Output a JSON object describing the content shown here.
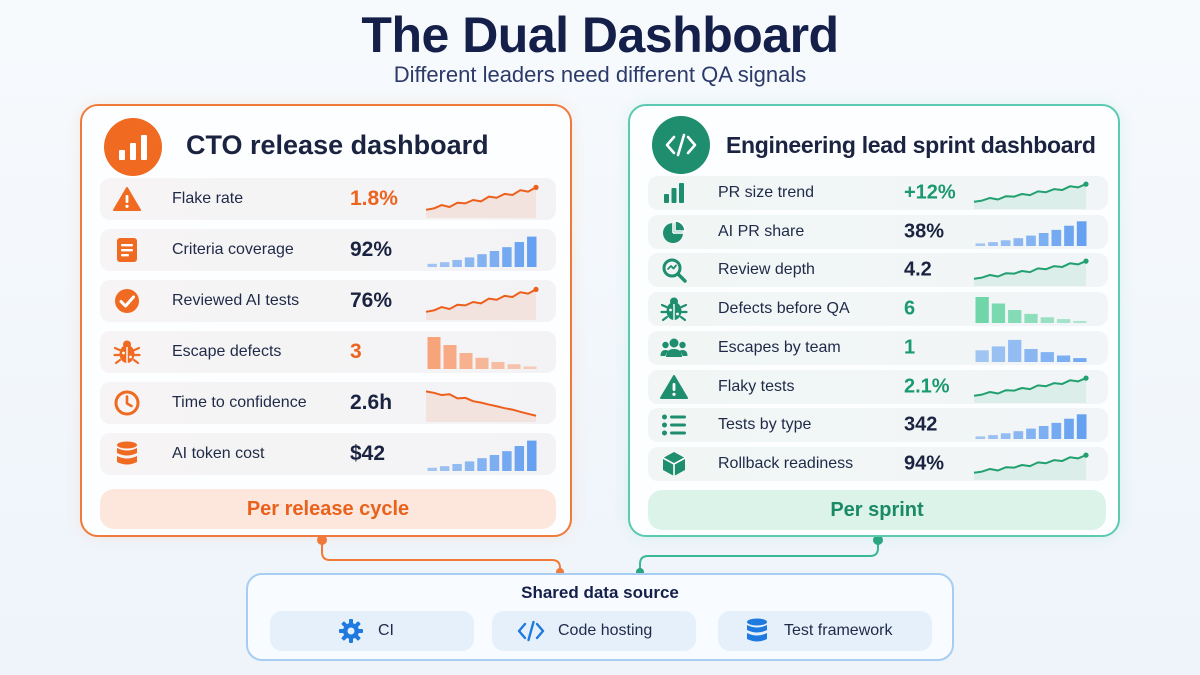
{
  "title": "The Dual Dashboard",
  "subtitle": "Different leaders need different QA signals",
  "colors": {
    "cto_accent": "#f06a22",
    "eng_accent": "#1e8e6e",
    "shared_border": "#a8cdf2",
    "value_blue": "#1a2340"
  },
  "cto": {
    "title": "CTO release dashboard",
    "icon": "bar-chart-icon",
    "footer": "Per release cycle",
    "rows": [
      {
        "label": "Flake rate",
        "value": "1.8%",
        "icon": "warning-icon",
        "value_color": "orange",
        "spark": "line-up"
      },
      {
        "label": "Criteria coverage",
        "value": "92%",
        "icon": "document-icon",
        "value_color": "dark",
        "spark": "bars-up"
      },
      {
        "label": "Reviewed AI tests",
        "value": "76%",
        "icon": "check-circle-icon",
        "value_color": "dark",
        "spark": "line-up"
      },
      {
        "label": "Escape defects",
        "value": "3",
        "icon": "bug-icon",
        "value_color": "orange",
        "spark": "bars-down"
      },
      {
        "label": "Time to confidence",
        "value": "2.6h",
        "icon": "clock-icon",
        "value_color": "dark",
        "spark": "line-down"
      },
      {
        "label": "AI token cost",
        "value": "$42",
        "icon": "database-icon",
        "value_color": "dark",
        "spark": "bars-up"
      }
    ]
  },
  "eng": {
    "title": "Engineering lead sprint dashboard",
    "icon": "code-icon",
    "footer": "Per sprint",
    "rows": [
      {
        "label": "PR size trend",
        "value": "+12%",
        "icon": "bar-chart-icon",
        "value_color": "green",
        "spark": "line-up"
      },
      {
        "label": "AI PR share",
        "value": "38%",
        "icon": "pie-chart-icon",
        "value_color": "dark",
        "spark": "bars-up"
      },
      {
        "label": "Review depth",
        "value": "4.2",
        "icon": "magnifier-icon",
        "value_color": "dark",
        "spark": "line-up"
      },
      {
        "label": "Defects before QA",
        "value": "6",
        "icon": "bug-icon",
        "value_color": "green",
        "spark": "bars-down"
      },
      {
        "label": "Escapes by team",
        "value": "1",
        "icon": "team-icon",
        "value_color": "green",
        "spark": "bars-mixed"
      },
      {
        "label": "Flaky tests",
        "value": "2.1%",
        "icon": "warning-icon",
        "value_color": "green",
        "spark": "line-up"
      },
      {
        "label": "Tests by type",
        "value": "342",
        "icon": "list-icon",
        "value_color": "dark",
        "spark": "bars-up"
      },
      {
        "label": "Rollback readiness",
        "value": "94%",
        "icon": "cube-icon",
        "value_color": "dark",
        "spark": "line-up"
      }
    ]
  },
  "shared": {
    "title": "Shared data source",
    "sources": [
      {
        "label": "CI",
        "icon": "gear-icon"
      },
      {
        "label": "Code hosting",
        "icon": "code-icon"
      },
      {
        "label": "Test framework",
        "icon": "database-icon"
      }
    ]
  }
}
